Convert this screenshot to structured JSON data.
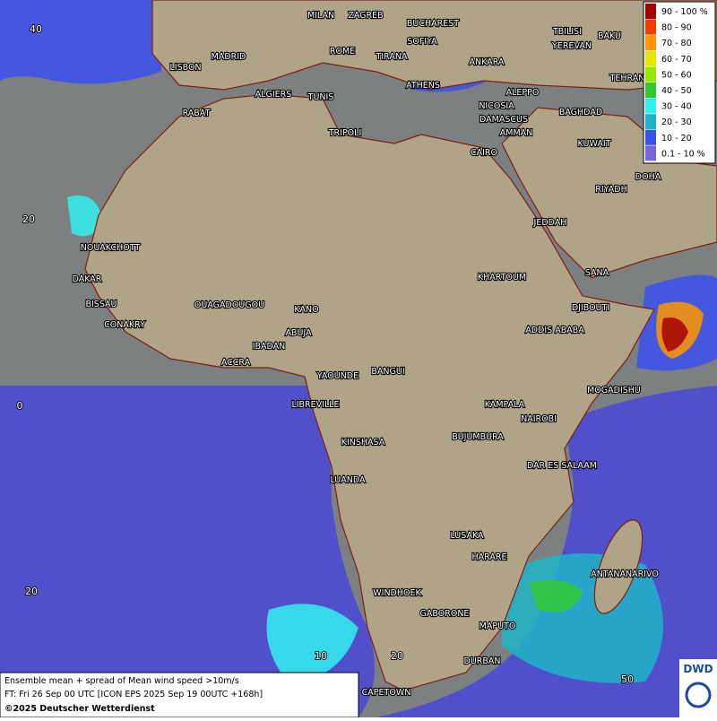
{
  "map": {
    "cities": [
      "MILAN",
      "ZAGREB",
      "BUCHAREST",
      "SOFIYA",
      "TBILISI",
      "BAKU",
      "YEREVAN",
      "MADRID",
      "ROME",
      "TIRANA",
      "ANKARA",
      "TEHRAN",
      "LISBON",
      "ALGIERS",
      "TUNIS",
      "ATHENS",
      "ALEPPO",
      "NICOSIA",
      "BAGHDAD",
      "RABAT",
      "DAMASCUS",
      "AMMAN",
      "TRIPOLI",
      "KUWAIT",
      "CAIRO",
      "DOHA",
      "RIYADH",
      "JEDDAH",
      "NOUAKCHOTT",
      "DAKAR",
      "KHARTOUM",
      "SANA",
      "BISSAU",
      "DJIBOUTI",
      "OUAGADOUGOU",
      "KANO",
      "CONAKRY",
      "ADDIS ABABA",
      "ABUJA",
      "IBADAN",
      "ACCRA",
      "YAOUNDE",
      "BANGUI",
      "MOGADISHU",
      "LIBREVILLE",
      "KAMPALA",
      "NAIROBI",
      "BUJUMBURA",
      "KINSHASA",
      "DAR ES SALAAM",
      "LUANDA",
      "LUSAKA",
      "HARARE",
      "ANTANANARIVO",
      "WINDHOEK",
      "GABORONE",
      "MAPUTO",
      "DURBAN",
      "CAPETOWN"
    ],
    "grid_labels": [
      "40",
      "20",
      "0",
      "20",
      "10",
      "20",
      "50"
    ],
    "legend": [
      {
        "label": "90 - 100 %",
        "color": "#a50000"
      },
      {
        "label": "80 - 90",
        "color": "#f03c00"
      },
      {
        "label": "70 - 80",
        "color": "#ff9600"
      },
      {
        "label": "60 - 70",
        "color": "#e6e600"
      },
      {
        "label": "50 - 60",
        "color": "#96e600"
      },
      {
        "label": "40 - 50",
        "color": "#32c832"
      },
      {
        "label": "30 - 40",
        "color": "#32f0f0"
      },
      {
        "label": "20 - 30",
        "color": "#1eb4c8"
      },
      {
        "label": "10 - 20",
        "color": "#3c50f0"
      },
      {
        "label": "0.1 - 10 %",
        "color": "#7864dc"
      }
    ],
    "footer": [
      "Ensemble mean + spread of Mean wind speed >10m/s",
      "FT: Fri 26 Sep 00 UTC [ICON EPS 2025 Sep 19 00UTC +168h]",
      "©2025 Deutscher Wetterdienst"
    ],
    "logo": "DWD"
  }
}
